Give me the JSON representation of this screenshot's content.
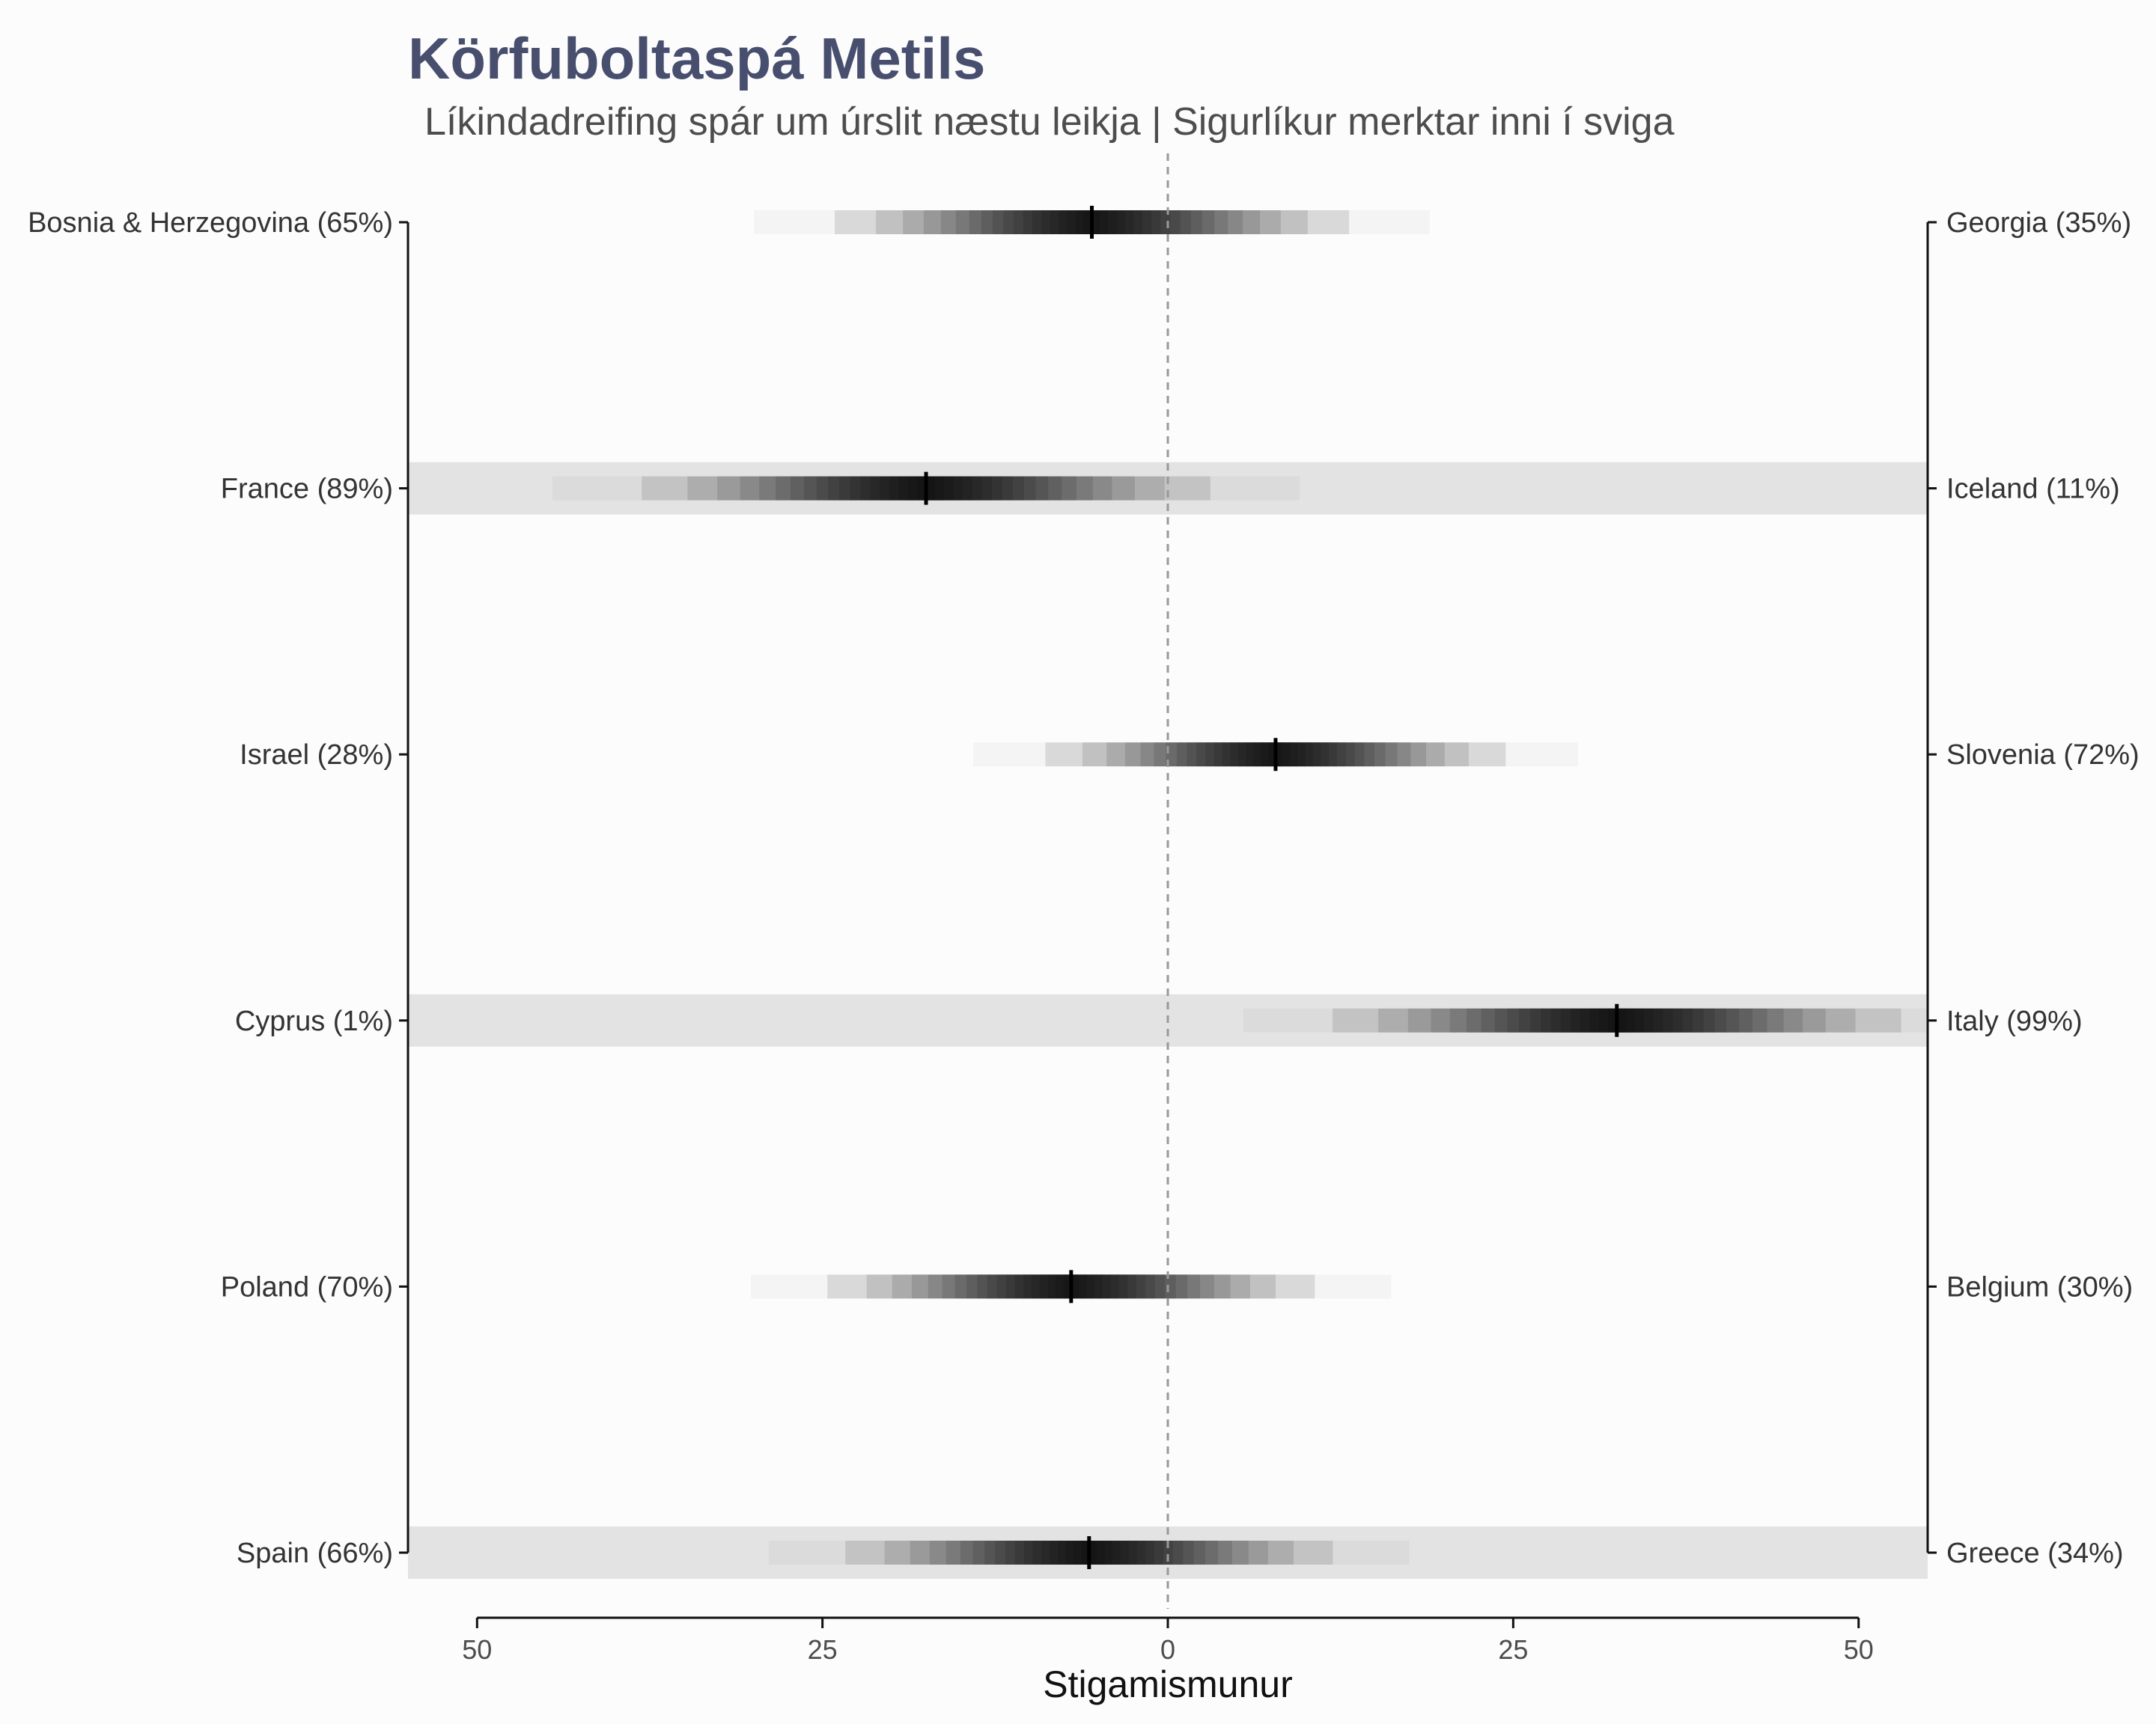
{
  "chart_data": {
    "type": "heatmap",
    "title": "Körfuboltaspá Metils",
    "subtitle": "Líkindadreifing spár um úrslit næstu leikja | Sigurlíkur merktar inni í sviga",
    "xlabel": "Stigamismunur",
    "xlim": [
      -55,
      55
    ],
    "x_ticks": [
      -50,
      -25,
      0,
      25,
      50
    ],
    "x_tick_labels": [
      "50",
      "25",
      "0",
      "25",
      "50"
    ],
    "games": [
      {
        "home": "Bosnia & Herzegovina (65%)",
        "away": "Georgia (35%)",
        "median": -5.5,
        "spread": 9.5,
        "shaded": false
      },
      {
        "home": "France (89%)",
        "away": "Iceland (11%)",
        "median": -17.5,
        "spread": 10.5,
        "shaded": true
      },
      {
        "home": "Israel (28%)",
        "away": "Slovenia (72%)",
        "median": 7.8,
        "spread": 8.5,
        "shaded": false
      },
      {
        "home": "Cyprus (1%)",
        "away": "Italy (99%)",
        "median": 32.5,
        "spread": 10.5,
        "shaded": true
      },
      {
        "home": "Poland (70%)",
        "away": "Belgium (30%)",
        "median": -7.0,
        "spread": 9.0,
        "shaded": false
      },
      {
        "home": "Spain (66%)",
        "away": "Greece (34%)",
        "median": -5.7,
        "spread": 9.0,
        "shaded": true
      }
    ]
  }
}
